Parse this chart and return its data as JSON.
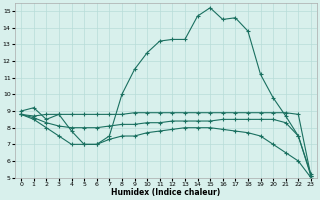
{
  "xlabel": "Humidex (Indice chaleur)",
  "line_color": "#1a7060",
  "background_color": "#d8f0ec",
  "grid_color": "#b8ddd8",
  "xlim": [
    -0.5,
    23.5
  ],
  "ylim": [
    5,
    15.5
  ],
  "xticks": [
    0,
    1,
    2,
    3,
    4,
    5,
    6,
    7,
    8,
    9,
    10,
    11,
    12,
    13,
    14,
    15,
    16,
    17,
    18,
    19,
    20,
    21,
    22,
    23
  ],
  "yticks": [
    5,
    6,
    7,
    8,
    9,
    10,
    11,
    12,
    13,
    14,
    15
  ],
  "series": [
    [
      9.0,
      9.2,
      8.5,
      8.8,
      7.8,
      7.0,
      7.0,
      7.5,
      10.0,
      11.5,
      12.5,
      13.2,
      13.3,
      13.3,
      14.7,
      15.2,
      14.5,
      14.6,
      13.8,
      11.2,
      9.8,
      8.7,
      7.5,
      5.2
    ],
    [
      8.8,
      8.7,
      8.8,
      8.8,
      8.8,
      8.8,
      8.8,
      8.8,
      8.8,
      8.9,
      8.9,
      8.9,
      8.9,
      8.9,
      8.9,
      8.9,
      8.9,
      8.9,
      8.9,
      8.9,
      8.9,
      8.9,
      8.8,
      5.1
    ],
    [
      8.8,
      8.6,
      8.3,
      8.1,
      8.0,
      8.0,
      8.0,
      8.1,
      8.2,
      8.2,
      8.3,
      8.3,
      8.4,
      8.4,
      8.4,
      8.4,
      8.5,
      8.5,
      8.5,
      8.5,
      8.5,
      8.3,
      7.5,
      5.1
    ],
    [
      8.8,
      8.5,
      8.0,
      7.5,
      7.0,
      7.0,
      7.0,
      7.3,
      7.5,
      7.5,
      7.7,
      7.8,
      7.9,
      8.0,
      8.0,
      8.0,
      7.9,
      7.8,
      7.7,
      7.5,
      7.0,
      6.5,
      6.0,
      5.0
    ]
  ]
}
